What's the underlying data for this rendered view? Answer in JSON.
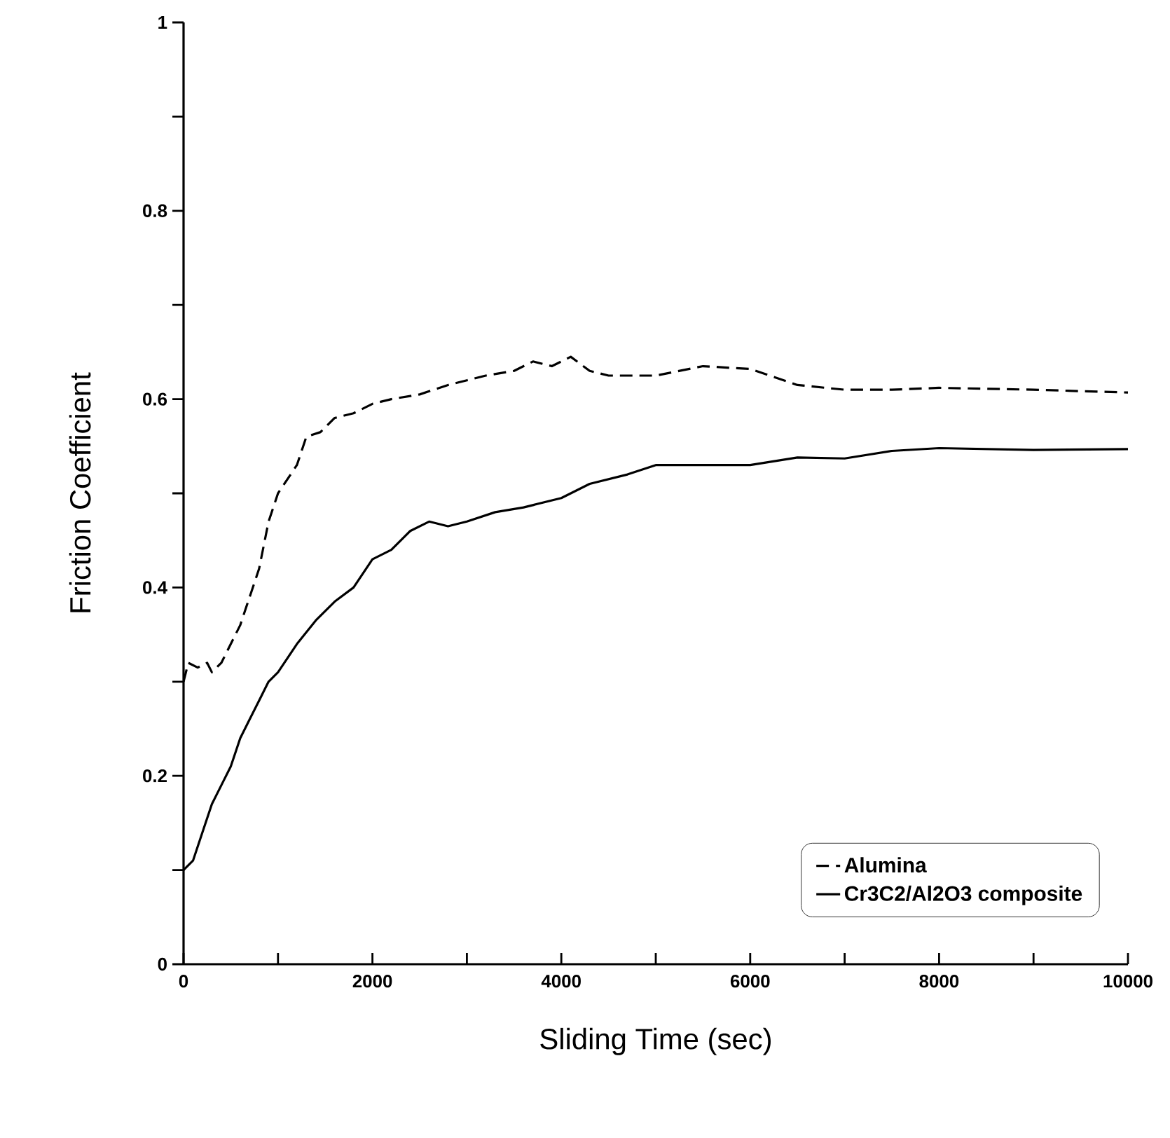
{
  "chart_data": {
    "type": "line",
    "xlabel": "Sliding Time (sec)",
    "ylabel": "Friction Coefficient",
    "xlim": [
      0,
      10000
    ],
    "ylim": [
      0,
      1
    ],
    "xticks": [
      0,
      {
        "value": 1000,
        "label": null
      },
      2000,
      {
        "value": 3000,
        "label": null
      },
      4000,
      {
        "value": 5000,
        "label": null
      },
      6000,
      {
        "value": 7000,
        "label": null
      },
      8000,
      {
        "value": 9000,
        "label": null
      },
      10000
    ],
    "yticks": [
      0,
      {
        "value": 0.1,
        "label": null
      },
      0.2,
      {
        "value": 0.3,
        "label": null
      },
      0.4,
      {
        "value": 0.5,
        "label": null
      },
      0.6,
      {
        "value": 0.7,
        "label": null
      },
      0.8,
      {
        "value": 0.9,
        "label": null
      },
      1
    ],
    "grid": false,
    "legend": "bottom right",
    "marker": "none",
    "series": [
      {
        "name": "Alumina",
        "color": "#000000",
        "line_style": "dashed",
        "x": [
          0,
          50,
          150,
          250,
          300,
          400,
          500,
          600,
          700,
          800,
          900,
          1000,
          1200,
          1300,
          1450,
          1600,
          1800,
          2000,
          2200,
          2500,
          2800,
          3000,
          3200,
          3500,
          3700,
          3900,
          4100,
          4300,
          4500,
          5000,
          5500,
          6000,
          6500,
          7000,
          7500,
          8000,
          9000,
          10000
        ],
        "values": [
          0.3,
          0.32,
          0.315,
          0.32,
          0.31,
          0.32,
          0.34,
          0.36,
          0.39,
          0.42,
          0.47,
          0.5,
          0.53,
          0.56,
          0.565,
          0.58,
          0.585,
          0.595,
          0.6,
          0.605,
          0.615,
          0.62,
          0.625,
          0.63,
          0.64,
          0.635,
          0.645,
          0.63,
          0.625,
          0.625,
          0.635,
          0.632,
          0.615,
          0.61,
          0.61,
          0.612,
          0.61,
          0.607
        ]
      },
      {
        "name": "Cr3C2/Al2O3 composite",
        "color": "#000000",
        "line_style": "solid",
        "x": [
          0,
          100,
          200,
          300,
          400,
          500,
          600,
          700,
          800,
          900,
          1000,
          1200,
          1400,
          1600,
          1800,
          2000,
          2200,
          2400,
          2600,
          2800,
          3000,
          3300,
          3600,
          4000,
          4300,
          4700,
          5000,
          5500,
          6000,
          6500,
          7000,
          7500,
          8000,
          9000,
          10000
        ],
        "values": [
          0.1,
          0.11,
          0.14,
          0.17,
          0.19,
          0.21,
          0.24,
          0.26,
          0.28,
          0.3,
          0.31,
          0.34,
          0.365,
          0.385,
          0.4,
          0.43,
          0.44,
          0.46,
          0.47,
          0.465,
          0.47,
          0.48,
          0.485,
          0.495,
          0.51,
          0.52,
          0.53,
          0.53,
          0.53,
          0.538,
          0.537,
          0.545,
          0.548,
          0.546,
          0.547
        ]
      }
    ]
  }
}
